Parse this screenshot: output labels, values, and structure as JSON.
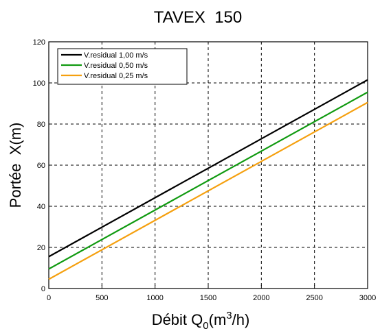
{
  "chart_data": {
    "type": "line",
    "title": "TAVEX  150",
    "xlabel": "Débit Q0(m3/h)",
    "xlabel_parts": {
      "main": "Débit Q",
      "sub": "0",
      "mid": "(m",
      "sup": "3",
      "end": "/h)"
    },
    "ylabel": "Portée  X(m)",
    "xlim": [
      0,
      3000
    ],
    "ylim": [
      0,
      120
    ],
    "x_ticks": [
      0,
      500,
      1000,
      1500,
      2000,
      2500,
      3000
    ],
    "y_ticks": [
      0,
      20,
      40,
      60,
      80,
      100,
      120
    ],
    "grid": true,
    "legend_position": "top-left",
    "series": [
      {
        "name": "V.residual 1,00 m/s",
        "color": "#000000",
        "x": [
          0,
          3000
        ],
        "y": [
          15.5,
          101.5
        ]
      },
      {
        "name": "V.residual 0,50 m/s",
        "color": "#109a10",
        "x": [
          0,
          3000
        ],
        "y": [
          9.5,
          95.5
        ]
      },
      {
        "name": "V.residual 0,25 m/s",
        "color": "#f5a00f",
        "x": [
          0,
          3000
        ],
        "y": [
          4.5,
          90.5
        ]
      }
    ]
  }
}
